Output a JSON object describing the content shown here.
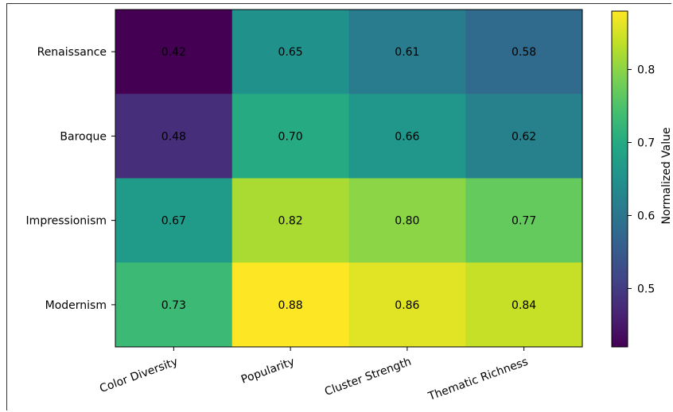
{
  "chart_data": {
    "type": "heatmap",
    "title": "",
    "xlabel": "",
    "ylabel": "",
    "rows": [
      "Renaissance",
      "Baroque",
      "Impressionism",
      "Modernism"
    ],
    "columns": [
      "Color Diversity",
      "Popularity",
      "Cluster Strength",
      "Thematic Richness"
    ],
    "values": [
      [
        0.42,
        0.65,
        0.61,
        0.58
      ],
      [
        0.48,
        0.7,
        0.66,
        0.62
      ],
      [
        0.67,
        0.82,
        0.8,
        0.77
      ],
      [
        0.73,
        0.88,
        0.86,
        0.84
      ]
    ],
    "value_labels": [
      [
        "0.42",
        "0.65",
        "0.61",
        "0.58"
      ],
      [
        "0.48",
        "0.70",
        "0.66",
        "0.62"
      ],
      [
        "0.67",
        "0.82",
        "0.80",
        "0.77"
      ],
      [
        "0.73",
        "0.88",
        "0.86",
        "0.84"
      ]
    ],
    "colormap": "viridis",
    "vmin": 0.42,
    "vmax": 0.88,
    "colorbar": {
      "label": "Normalized Value",
      "ticks": [
        0.5,
        0.6,
        0.7,
        0.8
      ],
      "tick_labels": [
        "0.5",
        "0.6",
        "0.7",
        "0.8"
      ]
    }
  }
}
